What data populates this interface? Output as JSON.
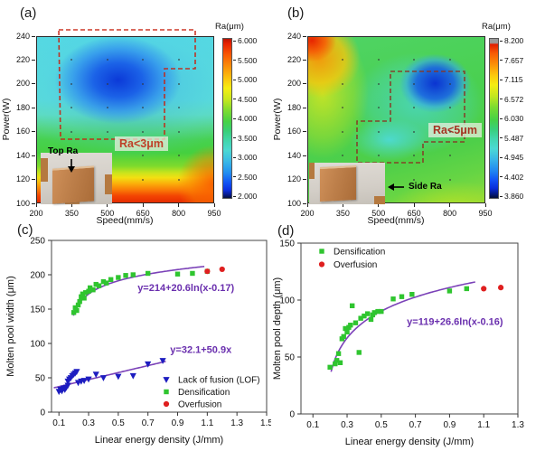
{
  "panel_a": {
    "label": "(a)",
    "xlabel": "Speed(mm/s)",
    "ylabel": "Power(W)",
    "x_ticks": [
      200,
      350,
      500,
      650,
      800,
      950
    ],
    "y_ticks": [
      100,
      120,
      140,
      160,
      180,
      200,
      220,
      240
    ],
    "colorbar": {
      "title": "Ra(μm)",
      "ticks": [
        "6.000",
        "5.500",
        "5.000",
        "4.500",
        "4.000",
        "3.500",
        "3.000",
        "2.500",
        "2.000"
      ]
    },
    "region_label": "Ra<3μm",
    "inset_label": "Top Ra"
  },
  "panel_b": {
    "label": "(b)",
    "xlabel": "Speed(mm/s)",
    "ylabel": "Power(W)",
    "x_ticks": [
      200,
      350,
      500,
      650,
      800,
      950
    ],
    "y_ticks": [
      100,
      120,
      140,
      160,
      180,
      200,
      220,
      240
    ],
    "colorbar": {
      "title": "Ra(μm)",
      "ticks": [
        "8.200",
        "7.657",
        "7.115",
        "6.572",
        "6.030",
        "5.487",
        "4.945",
        "4.402",
        "3.860"
      ]
    },
    "region_label": "Ra<5μm",
    "inset_label": "Side Ra"
  },
  "grid_dots": {
    "speeds": [
      350,
      500,
      650,
      800
    ],
    "powers": [
      120,
      140,
      160,
      180,
      200,
      220
    ]
  },
  "colors": {
    "lof_blue": "#1d1dc0",
    "densification_green": "#2fc52f",
    "overfusion_red": "#df1f1f",
    "fit_curve_purple": "#7b42b8",
    "equation_purple": "#6a2fae",
    "roi_dash_a": "#c62212",
    "roi_dash_b": "#8a3424"
  },
  "chart_data": [
    {
      "id": "c",
      "type": "scatter",
      "panel_label": "(c)",
      "xlabel": "Linear energy density (J/mm)",
      "ylabel": "Molten pool width (μm)",
      "xlim": [
        0.05,
        1.5
      ],
      "ylim": [
        0,
        250
      ],
      "x_ticks": [
        "0.1",
        "0.3",
        "0.5",
        "0.7",
        "0.9",
        "1.1",
        "1.3",
        "1.5"
      ],
      "y_ticks": [
        0,
        50,
        100,
        150,
        200,
        250
      ],
      "series": [
        {
          "name": "Lack of fusion (LOF)",
          "marker": "triangle-down",
          "color": "#1d1dc0",
          "points": [
            [
              0.1,
              30
            ],
            [
              0.11,
              33
            ],
            [
              0.12,
              31
            ],
            [
              0.13,
              35
            ],
            [
              0.14,
              33
            ],
            [
              0.15,
              36
            ],
            [
              0.16,
              39
            ],
            [
              0.16,
              45
            ],
            [
              0.17,
              48
            ],
            [
              0.18,
              50
            ],
            [
              0.19,
              53
            ],
            [
              0.2,
              55
            ],
            [
              0.21,
              57
            ],
            [
              0.22,
              59
            ],
            [
              0.23,
              43
            ],
            [
              0.25,
              45
            ],
            [
              0.27,
              46
            ],
            [
              0.3,
              48
            ],
            [
              0.35,
              55
            ],
            [
              0.4,
              50
            ],
            [
              0.5,
              52
            ],
            [
              0.6,
              53
            ],
            [
              0.7,
              70
            ],
            [
              0.8,
              75
            ]
          ]
        },
        {
          "name": "Densification",
          "marker": "square",
          "color": "#2fc52f",
          "points": [
            [
              0.2,
              145
            ],
            [
              0.21,
              152
            ],
            [
              0.22,
              148
            ],
            [
              0.23,
              156
            ],
            [
              0.24,
              161
            ],
            [
              0.25,
              168
            ],
            [
              0.26,
              172
            ],
            [
              0.27,
              166
            ],
            [
              0.28,
              174
            ],
            [
              0.3,
              176
            ],
            [
              0.31,
              181
            ],
            [
              0.33,
              178
            ],
            [
              0.35,
              186
            ],
            [
              0.37,
              184
            ],
            [
              0.4,
              190
            ],
            [
              0.42,
              188
            ],
            [
              0.45,
              193
            ],
            [
              0.5,
              196
            ],
            [
              0.55,
              199
            ],
            [
              0.6,
              200
            ],
            [
              0.7,
              202
            ],
            [
              0.9,
              201
            ],
            [
              1.0,
              202
            ],
            [
              1.1,
              205
            ]
          ]
        },
        {
          "name": "Overfusion",
          "marker": "circle",
          "color": "#df1f1f",
          "points": [
            [
              1.1,
              205
            ],
            [
              1.2,
              208
            ]
          ]
        }
      ],
      "fits": [
        {
          "label": "y=214+20.6ln(x-0.17)",
          "type": "log",
          "a": 214,
          "b": 20.6,
          "x0": 0.17,
          "domain": [
            0.198,
            1.08
          ],
          "label_xy": [
            0.63,
            176
          ]
        },
        {
          "label": "y=32.1+50.9x",
          "type": "linear",
          "a": 32.1,
          "b": 50.9,
          "domain": [
            0.065,
            0.82
          ],
          "label_xy": [
            0.85,
            86
          ]
        }
      ]
    },
    {
      "id": "d",
      "type": "scatter",
      "panel_label": "(d)",
      "xlabel": "Linear energy density (J/mm)",
      "ylabel": "Molten pool depth (μm)",
      "xlim": [
        0.03,
        1.3
      ],
      "ylim": [
        0,
        150
      ],
      "x_ticks": [
        "0.1",
        "0.3",
        "0.5",
        "0.7",
        "0.9",
        "1.1",
        "1.3"
      ],
      "y_ticks": [
        0,
        50,
        100,
        150
      ],
      "series": [
        {
          "name": "Densification",
          "marker": "square",
          "color": "#2fc52f",
          "points": [
            [
              0.2,
              41
            ],
            [
              0.23,
              44
            ],
            [
              0.24,
              47
            ],
            [
              0.25,
              53
            ],
            [
              0.26,
              45
            ],
            [
              0.27,
              66
            ],
            [
              0.28,
              68
            ],
            [
              0.29,
              75
            ],
            [
              0.3,
              72
            ],
            [
              0.31,
              76
            ],
            [
              0.32,
              78
            ],
            [
              0.33,
              95
            ],
            [
              0.35,
              80
            ],
            [
              0.37,
              54
            ],
            [
              0.38,
              84
            ],
            [
              0.4,
              86
            ],
            [
              0.42,
              88
            ],
            [
              0.44,
              83
            ],
            [
              0.45,
              87
            ],
            [
              0.46,
              89
            ],
            [
              0.48,
              90
            ],
            [
              0.5,
              90
            ],
            [
              0.57,
              101
            ],
            [
              0.62,
              103
            ],
            [
              0.68,
              105
            ],
            [
              0.9,
              108
            ],
            [
              1.0,
              110
            ]
          ]
        },
        {
          "name": "Overfusion",
          "marker": "circle",
          "color": "#df1f1f",
          "points": [
            [
              1.1,
              110
            ],
            [
              1.2,
              111
            ]
          ]
        }
      ],
      "fits": [
        {
          "label": "y=119+26.6ln(x-0.16)",
          "type": "log",
          "a": 119,
          "b": 26.6,
          "x0": 0.16,
          "domain": [
            0.206,
            1.05
          ],
          "label_xy": [
            0.65,
            78
          ]
        }
      ]
    }
  ]
}
